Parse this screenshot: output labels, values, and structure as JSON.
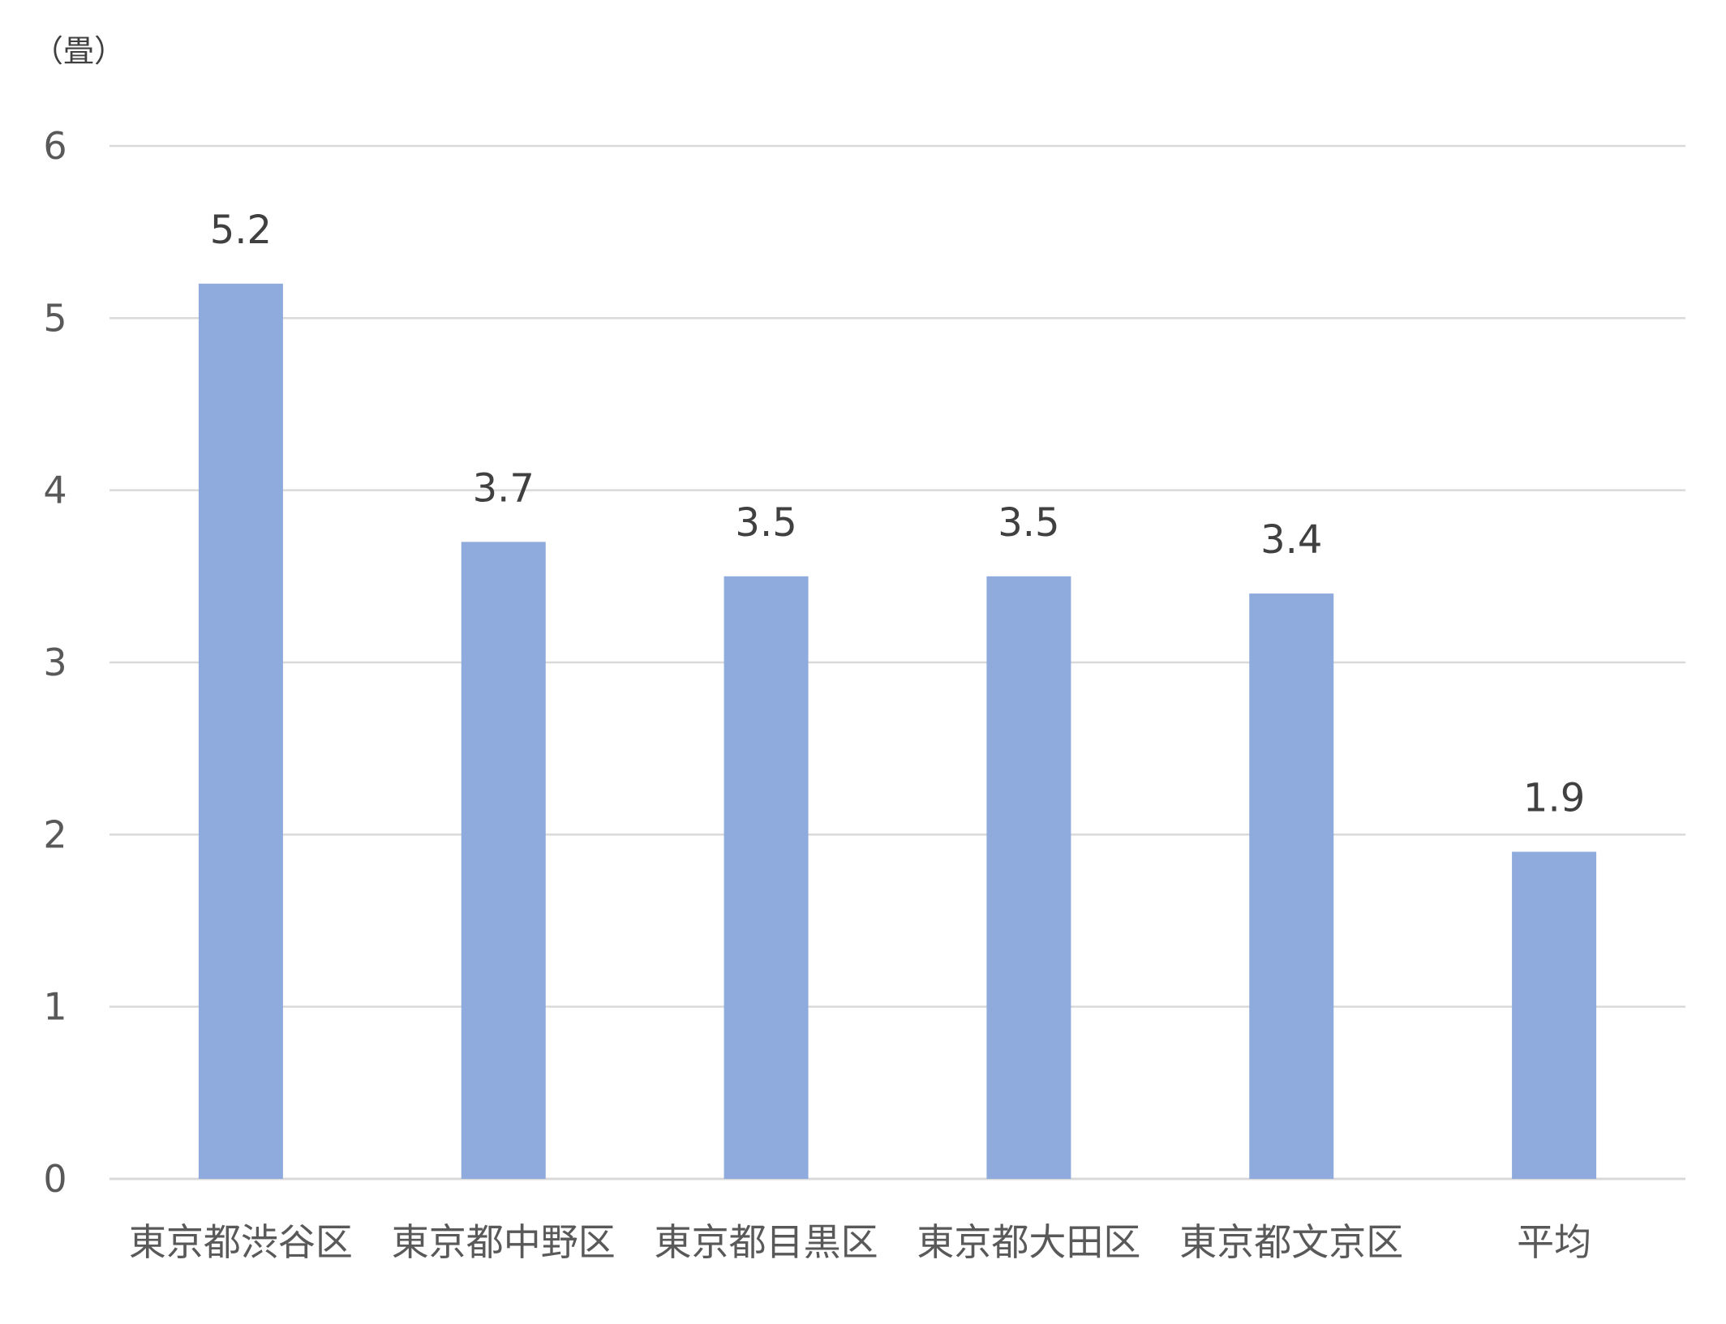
{
  "chart_data": {
    "type": "bar",
    "title": "",
    "xlabel": "",
    "ylabel": "（畳）",
    "categories": [
      "東京都渋谷区",
      "東京都中野区",
      "東京都目黒区",
      "東京都大田区",
      "東京都文京区",
      "平均"
    ],
    "values": [
      5.2,
      3.7,
      3.5,
      3.5,
      3.4,
      1.9
    ],
    "data_labels": [
      "5.2",
      "3.7",
      "3.5",
      "3.5",
      "3.4",
      "1.9"
    ],
    "ylim": [
      0,
      6
    ],
    "yticks": [
      0,
      1,
      2,
      3,
      4,
      5,
      6
    ],
    "grid": true,
    "legend": "none",
    "colors": {
      "bar": "#8faadc",
      "grid": "#d9d9d9",
      "text": "#595959"
    }
  }
}
